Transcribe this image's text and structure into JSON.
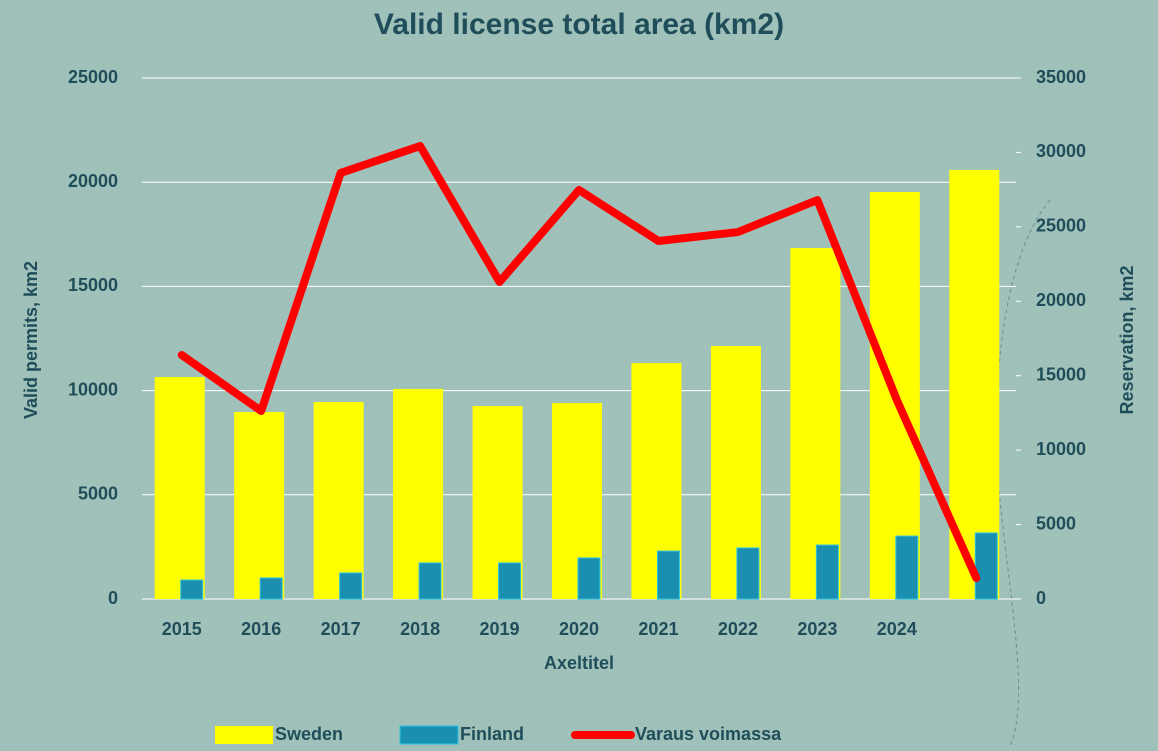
{
  "chart_data": {
    "type": "bar_line",
    "title": "Valid license total area (km2)",
    "x_label": "Axeltitel",
    "y_label": "Valid permits, km2",
    "y2_label": "Reservation, km2",
    "categories": [
      "2015",
      "2016",
      "2017",
      "2018",
      "2019",
      "2020",
      "2021",
      "2022",
      "2023",
      "2024",
      null
    ],
    "series": [
      {
        "name": "Sweden",
        "color": "#ffff00",
        "type": "bar",
        "values": [
          10650,
          8970,
          9450,
          10080,
          9260,
          9400,
          11320,
          12140,
          16840,
          19530,
          20590
        ]
      },
      {
        "name": "Finland",
        "color": "#1a8fb0",
        "type": "bar",
        "values": [
          910,
          1010,
          1250,
          1730,
          1730,
          1970,
          2300,
          2450,
          2590,
          3020,
          3170
        ]
      },
      {
        "name": "Varaus voimassa",
        "color": "#ff0000",
        "type": "line",
        "axis": "y2",
        "values": [
          16390,
          12630,
          28620,
          30430,
          21300,
          27480,
          24050,
          24650,
          26800,
          13370,
          1410
        ]
      }
    ],
    "ylim": [
      0,
      25000
    ],
    "yticks": [
      0,
      5000,
      10000,
      15000,
      20000,
      25000
    ],
    "y2lim": [
      0,
      35000
    ],
    "y2ticks": [
      0,
      5000,
      10000,
      15000,
      20000,
      25000,
      30000,
      35000
    ],
    "grid": true,
    "legend": "bottom"
  }
}
